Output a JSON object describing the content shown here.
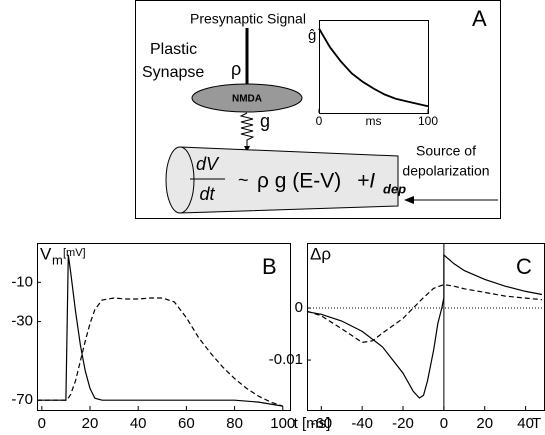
{
  "diagram": {
    "presynaptic": "Presynaptic Signal",
    "plastic": "Plastic",
    "synapse": "Synapse",
    "rho": "ρ",
    "receptor": "NMDA",
    "g": "g",
    "panel": "A",
    "source_line1": "Source of",
    "source_line2": "depolarization",
    "equation": {
      "numerator": "dV",
      "denominator": "dt",
      "relation": "~",
      "term": "ρ g (E-V)",
      "current": "+I",
      "current_subscript": "dep"
    }
  },
  "chart_data": [
    {
      "type": "line",
      "ylabel": "ĝ",
      "xlabel": "ms",
      "xlim": [
        0,
        100
      ],
      "ylim": [
        0,
        1.1
      ],
      "xticks": [
        0,
        100
      ],
      "series": [
        {
          "color": "#000",
          "dash": "solid",
          "x": [
            0,
            10,
            20,
            30,
            40,
            50,
            60,
            70,
            80,
            90,
            100
          ],
          "values": [
            1,
            0.78,
            0.61,
            0.47,
            0.37,
            0.29,
            0.22,
            0.17,
            0.14,
            0.11,
            0.08
          ]
        }
      ]
    },
    {
      "type": "line",
      "panel": "B",
      "ylabel": "V",
      "ylabel_subscript": "m",
      "ylabel_unit": "[mV]",
      "xlabel": "t [ms]",
      "xlim": [
        -2,
        103
      ],
      "ylim": [
        -75,
        10
      ],
      "xticks": [
        0,
        20,
        40,
        60,
        80,
        100
      ],
      "yticks": [
        -10,
        -30,
        -70
      ],
      "series": [
        {
          "color": "#000",
          "dash": "solid",
          "x": [
            -2,
            9,
            10,
            11,
            12,
            14,
            16,
            18,
            20,
            22,
            25,
            30,
            40,
            60,
            80,
            90,
            95,
            100
          ],
          "values": [
            -70,
            -70,
            -70,
            4,
            -5,
            -25,
            -42,
            -55,
            -64,
            -69,
            -70,
            -70,
            -70,
            -70,
            -70,
            -71,
            -72,
            -73
          ]
        },
        {
          "color": "#000",
          "dash": "dashed",
          "x": [
            -2,
            10,
            11,
            12,
            14,
            16,
            18,
            20,
            22,
            25,
            30,
            35,
            40,
            45,
            50,
            55,
            60,
            65,
            70,
            75,
            80,
            85,
            90,
            95,
            100
          ],
          "values": [
            -70,
            -70,
            -69,
            -67,
            -60,
            -50,
            -40,
            -31,
            -24,
            -19,
            -18,
            -18.5,
            -18.5,
            -18,
            -18,
            -20,
            -28,
            -38,
            -46,
            -53,
            -59,
            -64,
            -68,
            -71,
            -73
          ]
        }
      ]
    },
    {
      "type": "line",
      "panel": "C",
      "ylabel": "Δρ",
      "xlabel": "T [ms]",
      "zero_line": true,
      "x_zero_line": true,
      "xlim": [
        -67,
        49
      ],
      "ylim": [
        -0.0196,
        0.0125
      ],
      "xticks": [
        -60,
        -40,
        -20,
        0,
        20,
        40
      ],
      "yticks": [
        0,
        -0.01
      ],
      "series": [
        {
          "color": "#000",
          "dash": "solid",
          "x": [
            -67,
            -60,
            -50,
            -40,
            -30,
            -20,
            -15,
            -12,
            -10,
            -8,
            -5,
            -3,
            -1,
            0,
            0,
            5,
            10,
            20,
            30,
            40,
            48
          ],
          "values": [
            -0.0007,
            -0.0012,
            -0.0025,
            -0.0045,
            -0.0075,
            -0.0125,
            -0.016,
            -0.0173,
            -0.0168,
            -0.014,
            -0.008,
            -0.003,
            0,
            0.002,
            0.0102,
            0.0085,
            0.0072,
            0.0055,
            0.0042,
            0.0032,
            0.0026
          ]
        },
        {
          "color": "#000",
          "dash": "dashed",
          "x": [
            -67,
            -60,
            -50,
            -40,
            -35,
            -30,
            -20,
            -10,
            -5,
            0,
            5,
            10,
            20,
            30,
            40,
            48
          ],
          "values": [
            -0.0006,
            -0.0015,
            -0.004,
            -0.0066,
            -0.0063,
            -0.0048,
            -0.002,
            0.002,
            0.0038,
            0.0045,
            0.0042,
            0.0037,
            0.003,
            0.0023,
            0.0019,
            0.0016
          ]
        }
      ]
    }
  ]
}
